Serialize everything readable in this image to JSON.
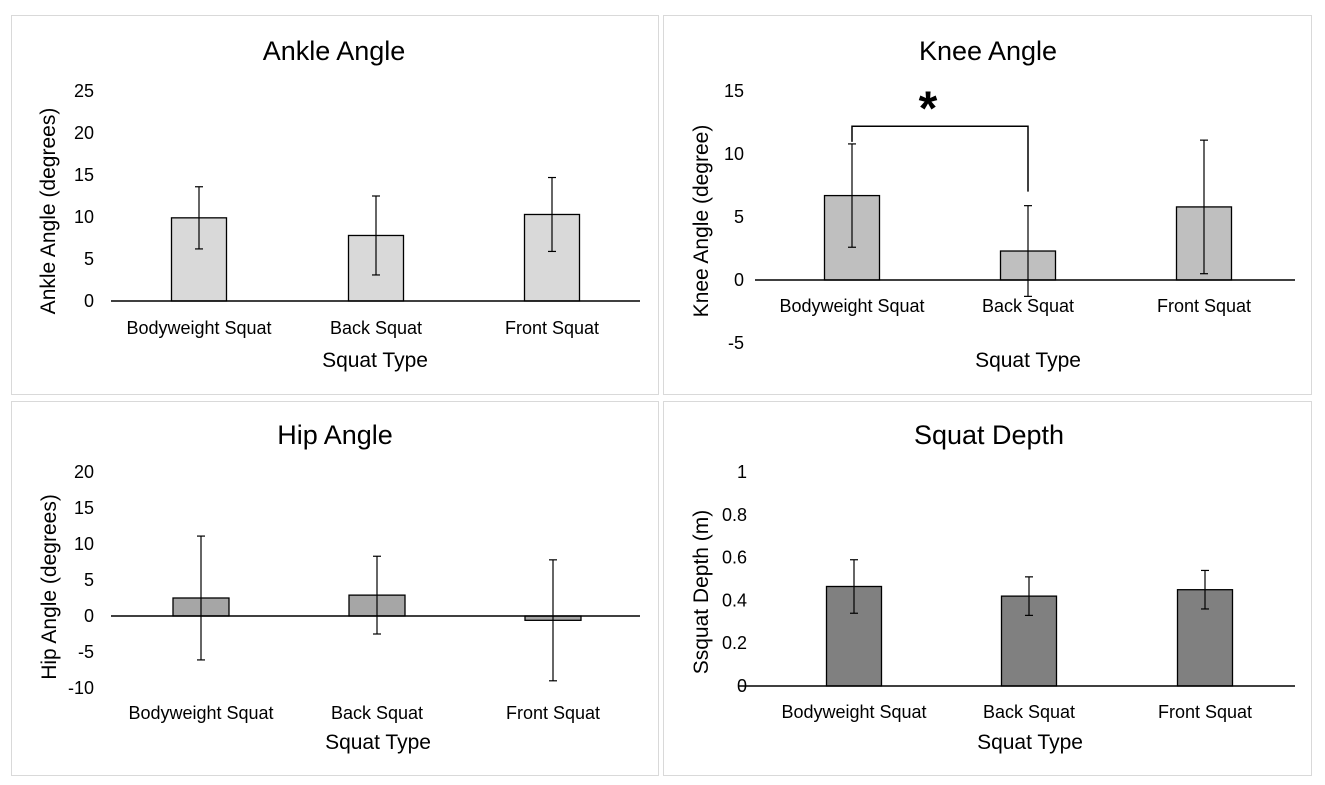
{
  "chart_data": [
    {
      "type": "bar",
      "title": "Ankle Angle",
      "xlabel": "Squat Type",
      "ylabel": "Ankle Angle (degrees)",
      "ylim": [
        0,
        25
      ],
      "yticks": [
        0,
        5,
        10,
        15,
        20,
        25
      ],
      "categories": [
        "Bodyweight Squat",
        "Back Squat",
        "Front Squat"
      ],
      "values": [
        9.9,
        7.8,
        10.3
      ],
      "errors": [
        3.7,
        4.7,
        4.4
      ],
      "bar_color": "#d9d9d9",
      "annotation": ""
    },
    {
      "type": "bar",
      "title": "Knee Angle",
      "xlabel": "Squat Type",
      "ylabel": "Knee Angle (degree)",
      "ylim": [
        -5,
        15
      ],
      "yticks": [
        -5,
        0,
        5,
        10,
        15
      ],
      "categories": [
        "Bodyweight Squat",
        "Back Squat",
        "Front Squat"
      ],
      "values": [
        6.7,
        2.3,
        5.8
      ],
      "errors": [
        4.1,
        3.6,
        5.3
      ],
      "bar_color": "#bfbfbf",
      "annotation": "*",
      "significance": {
        "from": 0,
        "to": 1,
        "level": 12.2
      }
    },
    {
      "type": "bar",
      "title": "Hip Angle",
      "xlabel": "Squat Type",
      "ylabel": "Hip Angle (degrees)",
      "ylim": [
        -10,
        20
      ],
      "yticks": [
        -10,
        -5,
        0,
        5,
        10,
        15,
        20
      ],
      "categories": [
        "Bodyweight Squat",
        "Back Squat",
        "Front Squat"
      ],
      "values": [
        2.5,
        2.9,
        -0.6
      ],
      "errors": [
        8.6,
        5.4,
        8.4
      ],
      "bar_color": "#a6a6a6",
      "annotation": ""
    },
    {
      "type": "bar",
      "title": "Squat Depth",
      "xlabel": "Squat Type",
      "ylabel": "Ssquat Depth (m)",
      "ylim": [
        0,
        1
      ],
      "yticks": [
        "0",
        "0.2",
        "0.4",
        "0.6",
        "0.8",
        "1"
      ],
      "categories": [
        "Bodyweight Squat",
        "Back Squat",
        "Front Squat"
      ],
      "values": [
        0.465,
        0.42,
        0.45
      ],
      "errors": [
        0.125,
        0.09,
        0.09
      ],
      "bar_color": "#808080",
      "annotation": ""
    }
  ]
}
